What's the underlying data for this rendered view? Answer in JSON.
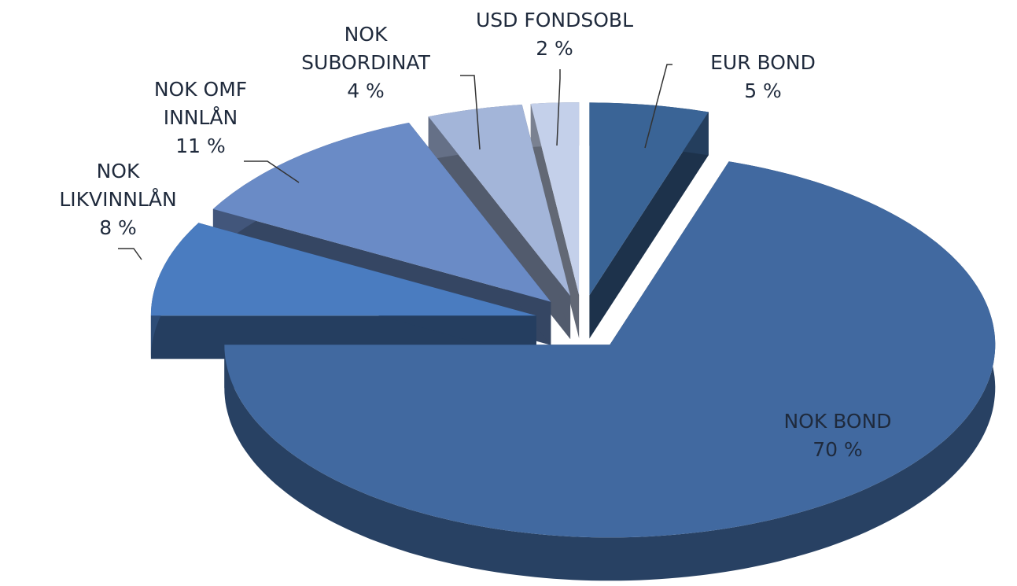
{
  "chart_data": {
    "type": "pie3d",
    "categories": [
      "EUR BOND",
      "NOK BOND",
      "NOK LIKVINNLÅN",
      "NOK OMF INNLÅN",
      "NOK SUBORDINAT",
      "USD FONDSOBL"
    ],
    "values": [
      5,
      70,
      8,
      11,
      4,
      2
    ],
    "value_labels": [
      "5 %",
      "70 %",
      "8 %",
      "11 %",
      "4 %",
      "2 %"
    ],
    "colors": [
      "#3a6496",
      "#4169a0",
      "#4a7cc0",
      "#6a8bc6",
      "#a3b5d9",
      "#c4d0ea"
    ]
  }
}
